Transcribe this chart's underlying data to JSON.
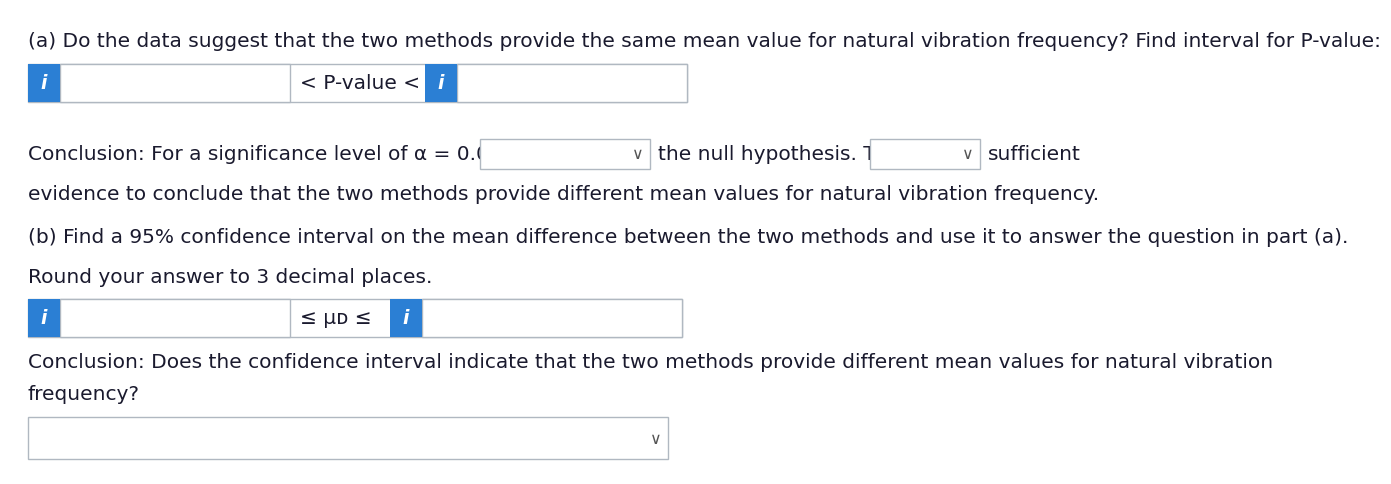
{
  "bg_color": "#ffffff",
  "title_a": "(a) Do the data suggest that the two methods provide the same mean value for natural vibration frequency? Find interval for P-value:",
  "pvalue_text": "< P-value <",
  "conclusion_a_pre": "Conclusion: For a significance level of α = 0.05, we would",
  "conclusion_a_mid": "the null hypothesis. There",
  "conclusion_a_post": "sufficient",
  "conclusion_a_line2": "evidence to conclude that the two methods provide different mean values for natural vibration frequency.",
  "title_b": "(b) Find a 95% confidence interval on the mean difference between the two methods and use it to answer the question in part (a).",
  "round_text": "Round your answer to 3 decimal places.",
  "mu_text": "≤ μᴅ ≤",
  "conclusion_b_line1": "Conclusion: Does the confidence interval indicate that the two methods provide different mean values for natural vibration",
  "conclusion_b_line2": "frequency?",
  "icon_color": "#2b7fd4",
  "icon_text": "i",
  "icon_text_color": "#ffffff",
  "box_border_color": "#b0b8c1",
  "text_color": "#1a1a2e",
  "font_size": 14.5,
  "chevron_color": "#555555"
}
